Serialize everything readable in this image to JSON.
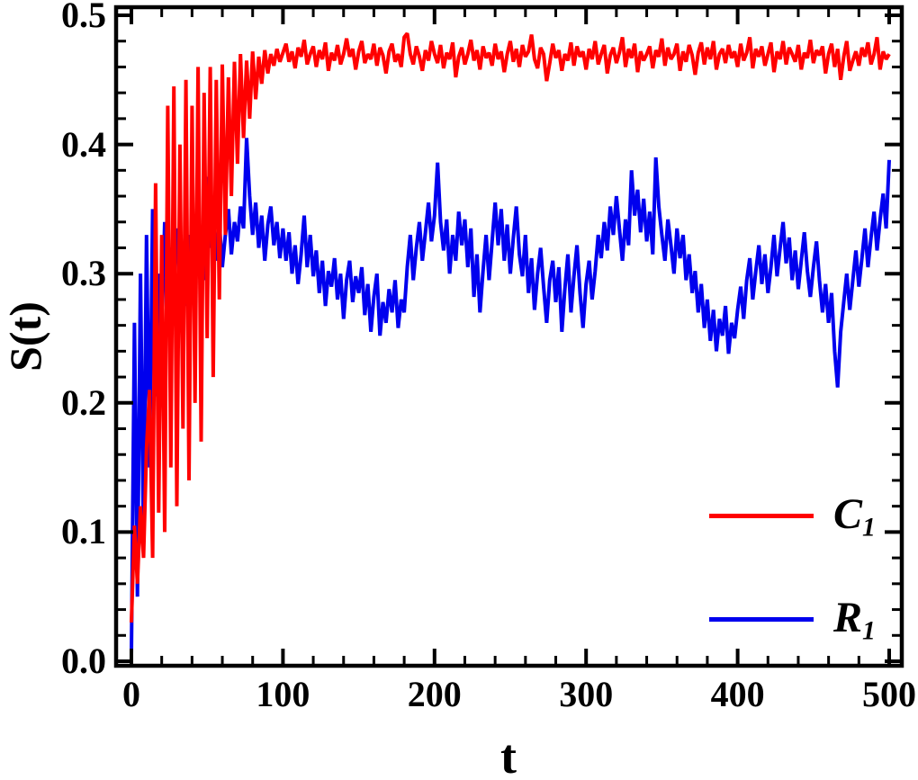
{
  "figure": {
    "background": "#ffffff",
    "frame_color": "#000000"
  },
  "chart_data": {
    "type": "line",
    "title": "",
    "xlabel": "t",
    "ylabel": "S(t)",
    "xlim": [
      0,
      500
    ],
    "ylim": [
      0,
      0.5
    ],
    "grid": false,
    "legend_position": "lower right",
    "x_tick_values": [
      0,
      100,
      200,
      300,
      400,
      500
    ],
    "x_tick_labels": [
      "0",
      "100",
      "200",
      "300",
      "400",
      "500"
    ],
    "x_minor_step": 20,
    "y_tick_values": [
      0,
      0.1,
      0.2,
      0.3,
      0.4,
      0.5
    ],
    "y_tick_labels": [
      "0.0",
      "0.1",
      "0.2",
      "0.3",
      "0.4",
      "0.5"
    ],
    "y_minor_step": 0.02,
    "series": [
      {
        "name": "C",
        "sub": "1",
        "color": "#ff0000",
        "x_start": 0,
        "x_step": 2,
        "values": [
          0.03,
          0.105,
          0.06,
          0.12,
          0.08,
          0.165,
          0.21,
          0.08,
          0.37,
          0.115,
          0.33,
          0.1,
          0.43,
          0.15,
          0.445,
          0.12,
          0.4,
          0.18,
          0.45,
          0.14,
          0.43,
          0.2,
          0.46,
          0.17,
          0.44,
          0.25,
          0.46,
          0.22,
          0.45,
          0.28,
          0.462,
          0.33,
          0.452,
          0.36,
          0.464,
          0.385,
          0.47,
          0.405,
          0.465,
          0.42,
          0.472,
          0.435,
          0.468,
          0.447,
          0.473,
          0.455,
          0.47,
          0.461,
          0.474,
          0.464,
          0.471,
          0.478,
          0.464,
          0.472,
          0.459,
          0.475,
          0.468,
          0.481,
          0.462,
          0.47,
          0.476,
          0.46,
          0.473,
          0.466,
          0.479,
          0.457,
          0.471,
          0.465,
          0.477,
          0.462,
          0.47,
          0.482,
          0.468,
          0.474,
          0.458,
          0.472,
          0.48,
          0.463,
          0.47,
          0.466,
          0.478,
          0.461,
          0.475,
          0.469,
          0.455,
          0.472,
          0.478,
          0.464,
          0.47,
          0.46,
          0.483,
          0.486,
          0.47,
          0.462,
          0.476,
          0.468,
          0.457,
          0.473,
          0.465,
          0.48,
          0.47,
          0.463,
          0.477,
          0.459,
          0.471,
          0.466,
          0.479,
          0.452,
          0.468,
          0.475,
          0.462,
          0.47,
          0.481,
          0.465,
          0.473,
          0.458,
          0.476,
          0.467,
          0.471,
          0.461,
          0.478,
          0.466,
          0.472,
          0.456,
          0.47,
          0.48,
          0.464,
          0.474,
          0.46,
          0.477,
          0.468,
          0.472,
          0.485,
          0.466,
          0.459,
          0.475,
          0.47,
          0.449,
          0.463,
          0.478,
          0.467,
          0.473,
          0.457,
          0.47,
          0.465,
          0.479,
          0.461,
          0.476,
          0.468,
          0.472,
          0.458,
          0.474,
          0.466,
          0.48,
          0.462,
          0.47,
          0.477,
          0.455,
          0.469,
          0.475,
          0.463,
          0.471,
          0.483,
          0.46,
          0.474,
          0.467,
          0.478,
          0.456,
          0.472,
          0.465,
          0.47,
          0.476,
          0.459,
          0.473,
          0.468,
          0.482,
          0.461,
          0.475,
          0.466,
          0.47,
          0.478,
          0.457,
          0.472,
          0.464,
          0.477,
          0.469,
          0.454,
          0.471,
          0.479,
          0.462,
          0.475,
          0.466,
          0.48,
          0.458,
          0.47,
          0.474,
          0.463,
          0.477,
          0.467,
          0.472,
          0.46,
          0.478,
          0.465,
          0.471,
          0.483,
          0.459,
          0.474,
          0.468,
          0.476,
          0.461,
          0.47,
          0.479,
          0.456,
          0.472,
          0.466,
          0.48,
          0.462,
          0.475,
          0.47,
          0.464,
          0.477,
          0.458,
          0.471,
          0.467,
          0.481,
          0.463,
          0.473,
          0.469,
          0.476,
          0.455,
          0.47,
          0.478,
          0.46,
          0.474,
          0.45,
          0.468,
          0.48,
          0.457,
          0.465,
          0.472,
          0.461,
          0.475,
          0.468,
          0.479,
          0.462,
          0.47,
          0.483,
          0.458,
          0.472,
          0.466,
          0.47
        ]
      },
      {
        "name": "R",
        "sub": "1",
        "color": "#0000ee",
        "x_start": 0,
        "x_step": 2,
        "values": [
          0.005,
          0.262,
          0.05,
          0.3,
          0.09,
          0.33,
          0.15,
          0.35,
          0.205,
          0.3,
          0.252,
          0.34,
          0.282,
          0.32,
          0.3,
          0.335,
          0.29,
          0.318,
          0.275,
          0.33,
          0.3,
          0.345,
          0.31,
          0.33,
          0.295,
          0.375,
          0.32,
          0.355,
          0.31,
          0.34,
          0.305,
          0.33,
          0.35,
          0.315,
          0.34,
          0.325,
          0.352,
          0.335,
          0.405,
          0.36,
          0.33,
          0.355,
          0.32,
          0.345,
          0.31,
          0.338,
          0.352,
          0.322,
          0.34,
          0.312,
          0.335,
          0.31,
          0.332,
          0.3,
          0.322,
          0.292,
          0.315,
          0.345,
          0.305,
          0.33,
          0.298,
          0.318,
          0.285,
          0.31,
          0.275,
          0.302,
          0.29,
          0.312,
          0.28,
          0.3,
          0.265,
          0.295,
          0.31,
          0.278,
          0.298,
          0.285,
          0.305,
          0.268,
          0.292,
          0.255,
          0.282,
          0.3,
          0.252,
          0.278,
          0.262,
          0.288,
          0.27,
          0.295,
          0.258,
          0.28,
          0.27,
          0.305,
          0.33,
          0.295,
          0.32,
          0.34,
          0.31,
          0.332,
          0.355,
          0.325,
          0.345,
          0.386,
          0.34,
          0.318,
          0.342,
          0.3,
          0.33,
          0.31,
          0.348,
          0.322,
          0.342,
          0.305,
          0.335,
          0.282,
          0.315,
          0.27,
          0.302,
          0.33,
          0.295,
          0.325,
          0.355,
          0.322,
          0.35,
          0.31,
          0.338,
          0.3,
          0.328,
          0.352,
          0.315,
          0.298,
          0.33,
          0.285,
          0.312,
          0.272,
          0.3,
          0.32,
          0.29,
          0.262,
          0.295,
          0.31,
          0.278,
          0.305,
          0.255,
          0.288,
          0.315,
          0.27,
          0.298,
          0.322,
          0.285,
          0.258,
          0.292,
          0.31,
          0.28,
          0.302,
          0.33,
          0.312,
          0.34,
          0.318,
          0.352,
          0.33,
          0.36,
          0.335,
          0.31,
          0.342,
          0.322,
          0.38,
          0.345,
          0.365,
          0.332,
          0.358,
          0.325,
          0.348,
          0.315,
          0.39,
          0.352,
          0.33,
          0.31,
          0.342,
          0.322,
          0.3,
          0.335,
          0.312,
          0.33,
          0.295,
          0.315,
          0.285,
          0.302,
          0.27,
          0.292,
          0.258,
          0.28,
          0.248,
          0.272,
          0.24,
          0.265,
          0.252,
          0.275,
          0.238,
          0.262,
          0.25,
          0.272,
          0.29,
          0.265,
          0.295,
          0.312,
          0.28,
          0.302,
          0.322,
          0.292,
          0.315,
          0.285,
          0.305,
          0.33,
          0.298,
          0.32,
          0.34,
          0.308,
          0.328,
          0.295,
          0.318,
          0.288,
          0.31,
          0.332,
          0.302,
          0.282,
          0.305,
          0.325,
          0.295,
          0.27,
          0.292,
          0.262,
          0.285,
          0.24,
          0.212,
          0.255,
          0.278,
          0.3,
          0.272,
          0.295,
          0.318,
          0.29,
          0.312,
          0.335,
          0.305,
          0.328,
          0.348,
          0.318,
          0.342,
          0.362,
          0.335,
          0.388
        ]
      }
    ]
  }
}
